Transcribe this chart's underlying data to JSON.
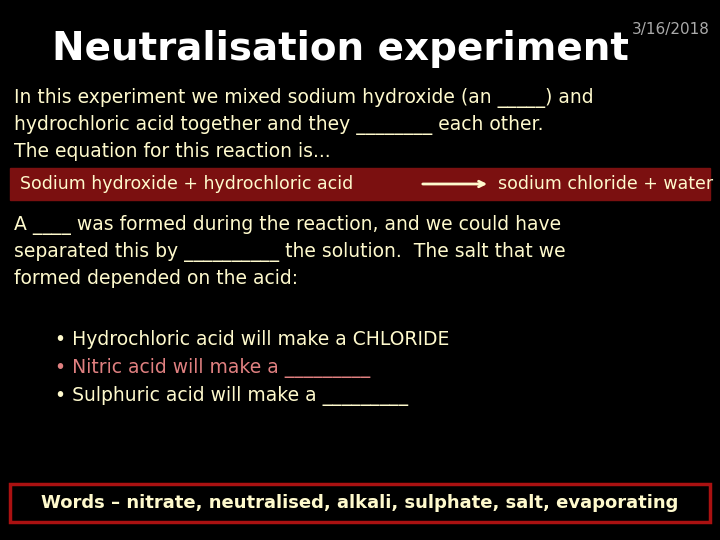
{
  "background_color": "#000000",
  "title": "Neutralisation experiment",
  "date": "3/16/2018",
  "title_color": "#FFFFFF",
  "title_fontsize": 28,
  "date_fontsize": 11,
  "date_color": "#AAAAAA",
  "body_color": "#FFFACD",
  "body_fontsize": 13.5,
  "red_bar_color": "#7B1010",
  "red_bar_text_color": "#FFFACD",
  "red_bar_text": "Sodium hydroxide + hydrochloric acid",
  "red_bar_arrow_text": "sodium chloride + water",
  "nitric_color": "#E08080",
  "words_box_edge_color": "#AA1111",
  "words_text": "Words – nitrate, neutralised, alkali, sulphate, salt, evaporating",
  "words_fontsize": 13,
  "para1_line1": "In this experiment we mixed sodium hydroxide (an _____) and",
  "para1_line2": "hydrochloric acid together and they ________ each other.",
  "para1_line3": "The equation for this reaction is...",
  "para2_line1": "A ____ was formed during the reaction, and we could have",
  "para2_line2": "separated this by __________ the solution.  The salt that we",
  "para2_line3": "formed depended on the acid:",
  "bullet1": "• Hydrochloric acid will make a CHLORIDE",
  "bullet2": "• Nitric acid will make a _________",
  "bullet3": "• Sulphuric acid will make a _________"
}
